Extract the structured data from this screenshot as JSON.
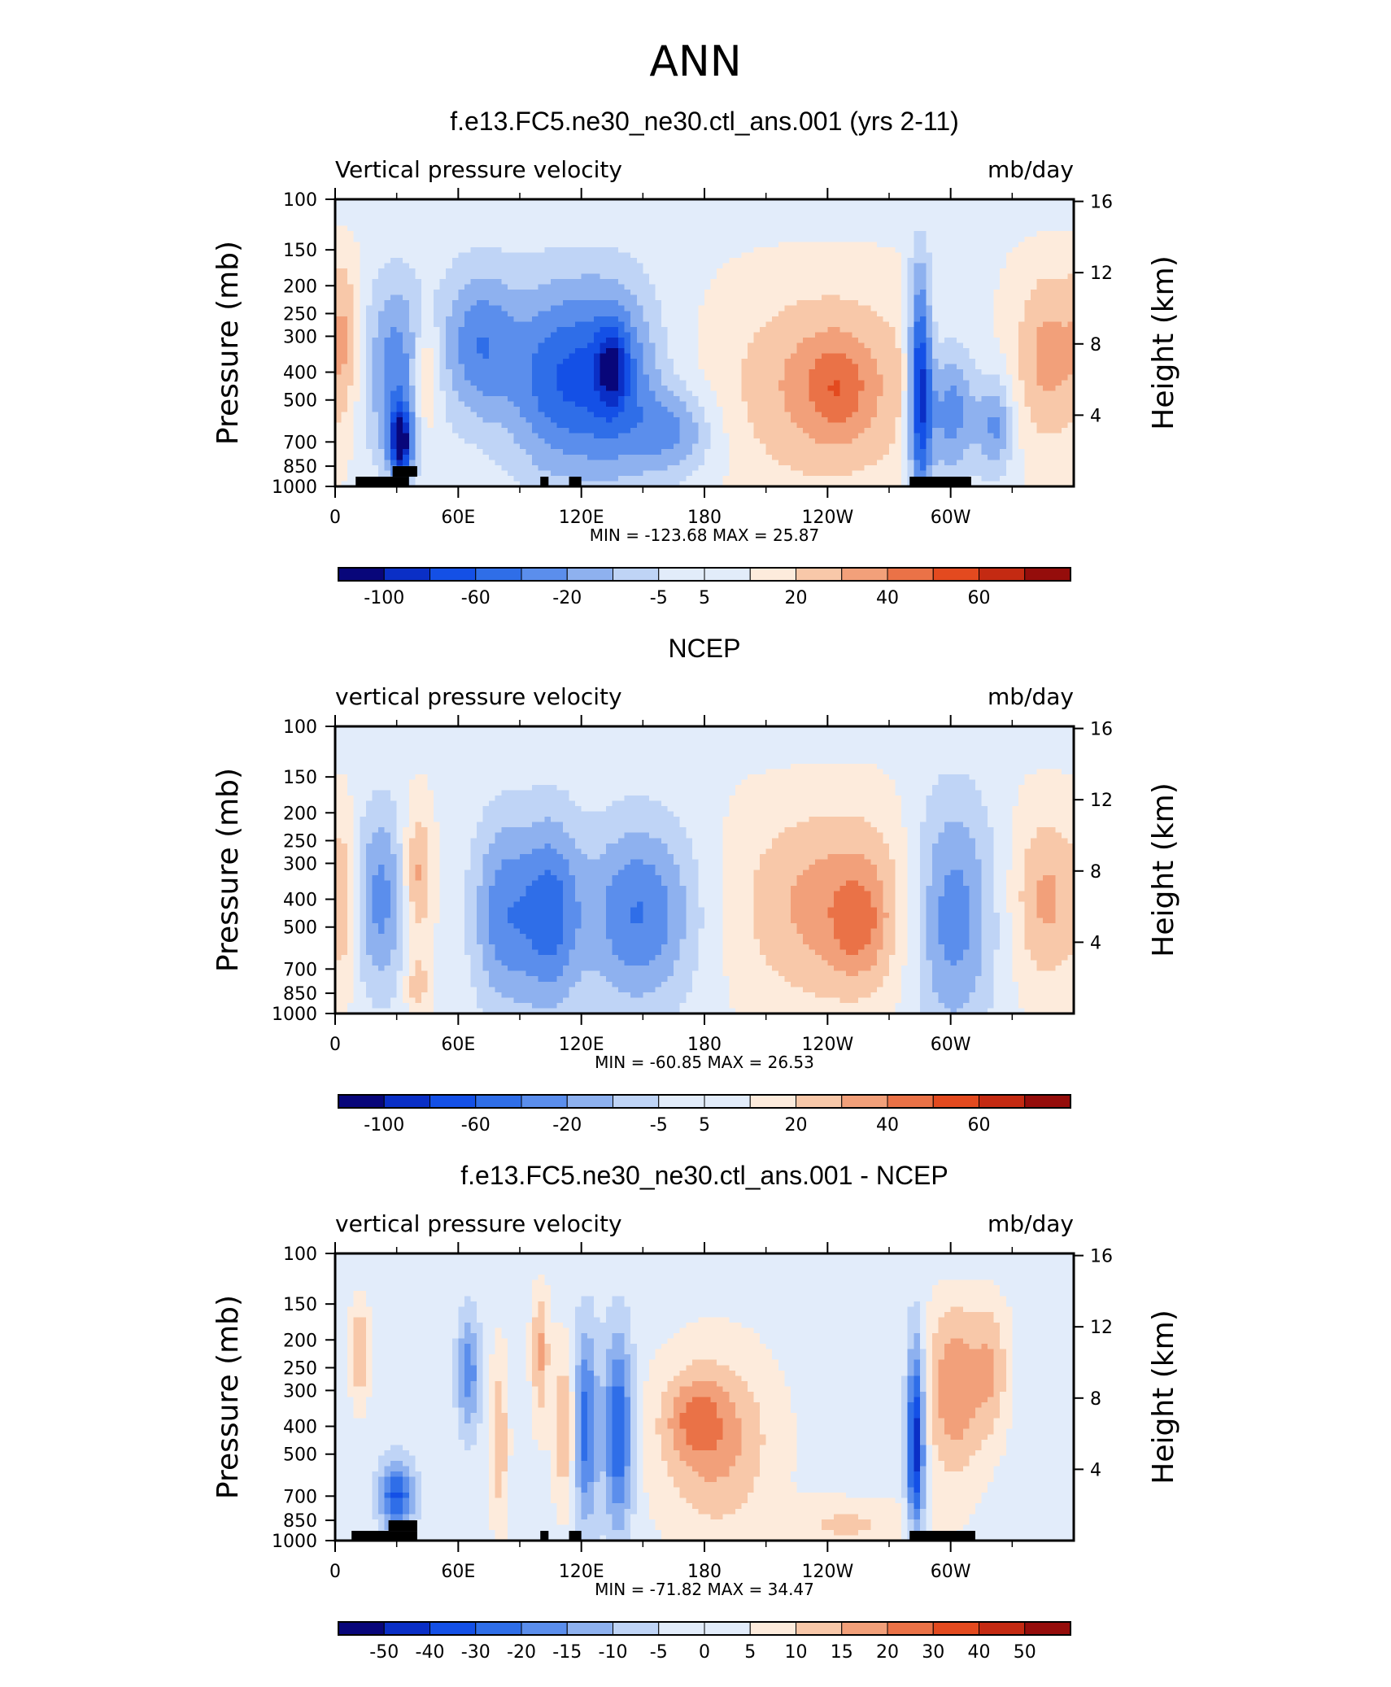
{
  "page": {
    "title": "ANN"
  },
  "colors": {
    "palette": [
      "#08067a",
      "#0a2fc6",
      "#1450e6",
      "#2f6ee8",
      "#5b8eec",
      "#8eb1ef",
      "#bfd4f6",
      "#e2ecfa",
      "#fdebdc",
      "#f8c8a9",
      "#f2a07a",
      "#ea7247",
      "#e34a1f",
      "#c42a12",
      "#950d0b"
    ],
    "land_mask": "#000000"
  },
  "chart_data": [
    {
      "type": "heatmap",
      "title": "f.e13.FC5.ne30_ne30.ctl_ans.001 (yrs 2-11)",
      "left_label": "Vertical pressure velocity",
      "right_label": "mb/day",
      "ylabel": "Pressure (mb)",
      "ylabel_right": "Height (km)",
      "x_ticks": [
        "0",
        "60E",
        "120E",
        "180",
        "120W",
        "60W"
      ],
      "y_ticks": [
        "100",
        "150",
        "200",
        "250",
        "300",
        "400",
        "500",
        "700",
        "850",
        "1000"
      ],
      "y_ticks_right": [
        "16",
        "12",
        "8",
        "4"
      ],
      "x_range": [
        "0",
        "360"
      ],
      "y_range_mb": [
        1000,
        100
      ],
      "y_scale": "log",
      "stats": "MIN = -123.68   MAX =   25.87",
      "colorbar_labels": [
        "-100",
        "-60",
        "-20",
        "-5",
        "5",
        "20",
        "40",
        "60"
      ],
      "colorbar_label_slots": [
        1,
        3,
        5,
        7,
        8,
        10,
        12,
        14
      ],
      "colorbar_bins": 16,
      "features": [
        {
          "lon": 30,
          "p": 400,
          "sx": 11,
          "sy": 0.95,
          "v": -3.5
        },
        {
          "lon": 32,
          "p": 700,
          "sx": 4,
          "sy": 0.35,
          "v": -6.5
        },
        {
          "lon": 44,
          "p": 420,
          "sx": 5,
          "sy": 0.6,
          "v": 2.8
        },
        {
          "lon": 70,
          "p": 320,
          "sx": 13,
          "sy": 0.8,
          "v": -3.5
        },
        {
          "lon": 105,
          "p": 420,
          "sx": 16,
          "sy": 1.0,
          "v": -3.8
        },
        {
          "lon": 135,
          "p": 420,
          "sx": 16,
          "sy": 1.0,
          "v": -4.3
        },
        {
          "lon": 135,
          "p": 380,
          "sx": 5,
          "sy": 0.4,
          "v": -3.0
        },
        {
          "lon": 165,
          "p": 650,
          "sx": 14,
          "sy": 0.45,
          "v": -2.8
        },
        {
          "lon": 240,
          "p": 450,
          "sx": 34,
          "sy": 1.0,
          "v": 2.7
        },
        {
          "lon": 245,
          "p": 450,
          "sx": 10,
          "sy": 0.45,
          "v": 1.6
        },
        {
          "lon": 285,
          "p": 450,
          "sx": 4,
          "sy": 1.2,
          "v": -6.5
        },
        {
          "lon": 300,
          "p": 550,
          "sx": 9,
          "sy": 0.7,
          "v": -3.8
        },
        {
          "lon": 322,
          "p": 620,
          "sx": 6,
          "sy": 0.5,
          "v": -3.0
        },
        {
          "lon": 348,
          "p": 350,
          "sx": 12,
          "sy": 0.9,
          "v": 2.6
        },
        {
          "lon": 5,
          "p": 300,
          "sx": 5,
          "sy": 0.9,
          "v": 1.6
        }
      ],
      "base_value": 0.3,
      "land_segments": [
        [
          10,
          36,
          1000,
          925
        ],
        [
          28,
          40,
          925,
          850
        ],
        [
          100,
          104,
          1000,
          925
        ],
        [
          114,
          120,
          1000,
          925
        ],
        [
          280,
          310,
          1000,
          925
        ]
      ]
    },
    {
      "type": "heatmap",
      "title": "NCEP",
      "left_label": "vertical pressure velocity",
      "right_label": "mb/day",
      "ylabel": "Pressure (mb)",
      "ylabel_right": "Height (km)",
      "x_ticks": [
        "0",
        "60E",
        "120E",
        "180",
        "120W",
        "60W"
      ],
      "y_ticks": [
        "100",
        "150",
        "200",
        "250",
        "300",
        "400",
        "500",
        "700",
        "850",
        "1000"
      ],
      "y_ticks_right": [
        "16",
        "12",
        "8",
        "4"
      ],
      "x_range": [
        "0",
        "360"
      ],
      "y_range_mb": [
        1000,
        100
      ],
      "y_scale": "log",
      "stats": "MIN = -60.85   MAX =   26.53",
      "colorbar_labels": [
        "-100",
        "-60",
        "-20",
        "-5",
        "5",
        "20",
        "40",
        "60"
      ],
      "colorbar_label_slots": [
        1,
        3,
        5,
        7,
        8,
        10,
        12,
        14
      ],
      "colorbar_bins": 16,
      "features": [
        {
          "lon": 22,
          "p": 400,
          "sx": 9,
          "sy": 0.95,
          "v": -3.2
        },
        {
          "lon": 40,
          "p": 330,
          "sx": 5,
          "sy": 0.7,
          "v": 2.6
        },
        {
          "lon": 40,
          "p": 800,
          "sx": 4,
          "sy": 0.3,
          "v": 1.8
        },
        {
          "lon": 82,
          "p": 450,
          "sx": 11,
          "sy": 1.0,
          "v": -3.4
        },
        {
          "lon": 105,
          "p": 450,
          "sx": 10,
          "sy": 1.0,
          "v": -3.8
        },
        {
          "lon": 148,
          "p": 450,
          "sx": 20,
          "sy": 0.95,
          "v": -3.9
        },
        {
          "lon": 245,
          "p": 420,
          "sx": 34,
          "sy": 1.0,
          "v": 2.8
        },
        {
          "lon": 255,
          "p": 500,
          "sx": 9,
          "sy": 0.5,
          "v": 1.5
        },
        {
          "lon": 300,
          "p": 450,
          "sx": 15,
          "sy": 1.2,
          "v": -4.0
        },
        {
          "lon": 347,
          "p": 400,
          "sx": 12,
          "sy": 0.9,
          "v": 2.4
        },
        {
          "lon": 5,
          "p": 400,
          "sx": 4,
          "sy": 0.9,
          "v": 1.5
        }
      ],
      "base_value": 0.3,
      "land_segments": []
    },
    {
      "type": "heatmap",
      "title": "f.e13.FC5.ne30_ne30.ctl_ans.001 - NCEP",
      "left_label": "vertical pressure velocity",
      "right_label": "mb/day",
      "ylabel": "Pressure (mb)",
      "ylabel_right": "Height (km)",
      "x_ticks": [
        "0",
        "60E",
        "120E",
        "180",
        "120W",
        "60W"
      ],
      "y_ticks": [
        "100",
        "150",
        "200",
        "250",
        "300",
        "400",
        "500",
        "700",
        "850",
        "1000"
      ],
      "y_ticks_right": [
        "16",
        "12",
        "8",
        "4"
      ],
      "x_range": [
        "0",
        "360"
      ],
      "y_range_mb": [
        1000,
        100
      ],
      "y_scale": "log",
      "stats": "MIN = -71.82   MAX =   34.47",
      "colorbar_labels": [
        "-50",
        "-40",
        "-30",
        "-20",
        "-15",
        "-10",
        "-5",
        "0",
        "5",
        "10",
        "15",
        "20",
        "30",
        "40",
        "50"
      ],
      "colorbar_label_slots": [
        1,
        2,
        3,
        4,
        5,
        6,
        7,
        8,
        9,
        10,
        11,
        12,
        13,
        14,
        15
      ],
      "colorbar_bins": 16,
      "features": [
        {
          "lon": 12,
          "p": 220,
          "sx": 3,
          "sy": 0.5,
          "v": 2.6
        },
        {
          "lon": 30,
          "p": 700,
          "sx": 6,
          "sy": 0.35,
          "v": -4.8
        },
        {
          "lon": 65,
          "p": 260,
          "sx": 4,
          "sy": 0.6,
          "v": -3.2
        },
        {
          "lon": 80,
          "p": 450,
          "sx": 3,
          "sy": 0.9,
          "v": 2.2
        },
        {
          "lon": 100,
          "p": 220,
          "sx": 3,
          "sy": 0.7,
          "v": 2.6
        },
        {
          "lon": 112,
          "p": 400,
          "sx": 4,
          "sy": 0.8,
          "v": 2.5
        },
        {
          "lon": 122,
          "p": 400,
          "sx": 4,
          "sy": 1.0,
          "v": -4.2
        },
        {
          "lon": 138,
          "p": 420,
          "sx": 5,
          "sy": 1.0,
          "v": -4.8
        },
        {
          "lon": 185,
          "p": 450,
          "sx": 20,
          "sy": 0.9,
          "v": 2.8
        },
        {
          "lon": 175,
          "p": 370,
          "sx": 10,
          "sy": 0.4,
          "v": 1.8
        },
        {
          "lon": 250,
          "p": 880,
          "sx": 25,
          "sy": 0.25,
          "v": 1.6
        },
        {
          "lon": 283,
          "p": 450,
          "sx": 3,
          "sy": 1.0,
          "v": -6.5
        },
        {
          "lon": 302,
          "p": 300,
          "sx": 10,
          "sy": 0.9,
          "v": 3.3
        },
        {
          "lon": 320,
          "p": 250,
          "sx": 6,
          "sy": 0.7,
          "v": 2.0
        }
      ],
      "base_value": 0.1,
      "land_segments": [
        [
          8,
          40,
          1000,
          925
        ],
        [
          26,
          40,
          925,
          850
        ],
        [
          100,
          104,
          1000,
          925
        ],
        [
          114,
          120,
          1000,
          925
        ],
        [
          280,
          312,
          1000,
          925
        ]
      ]
    }
  ]
}
